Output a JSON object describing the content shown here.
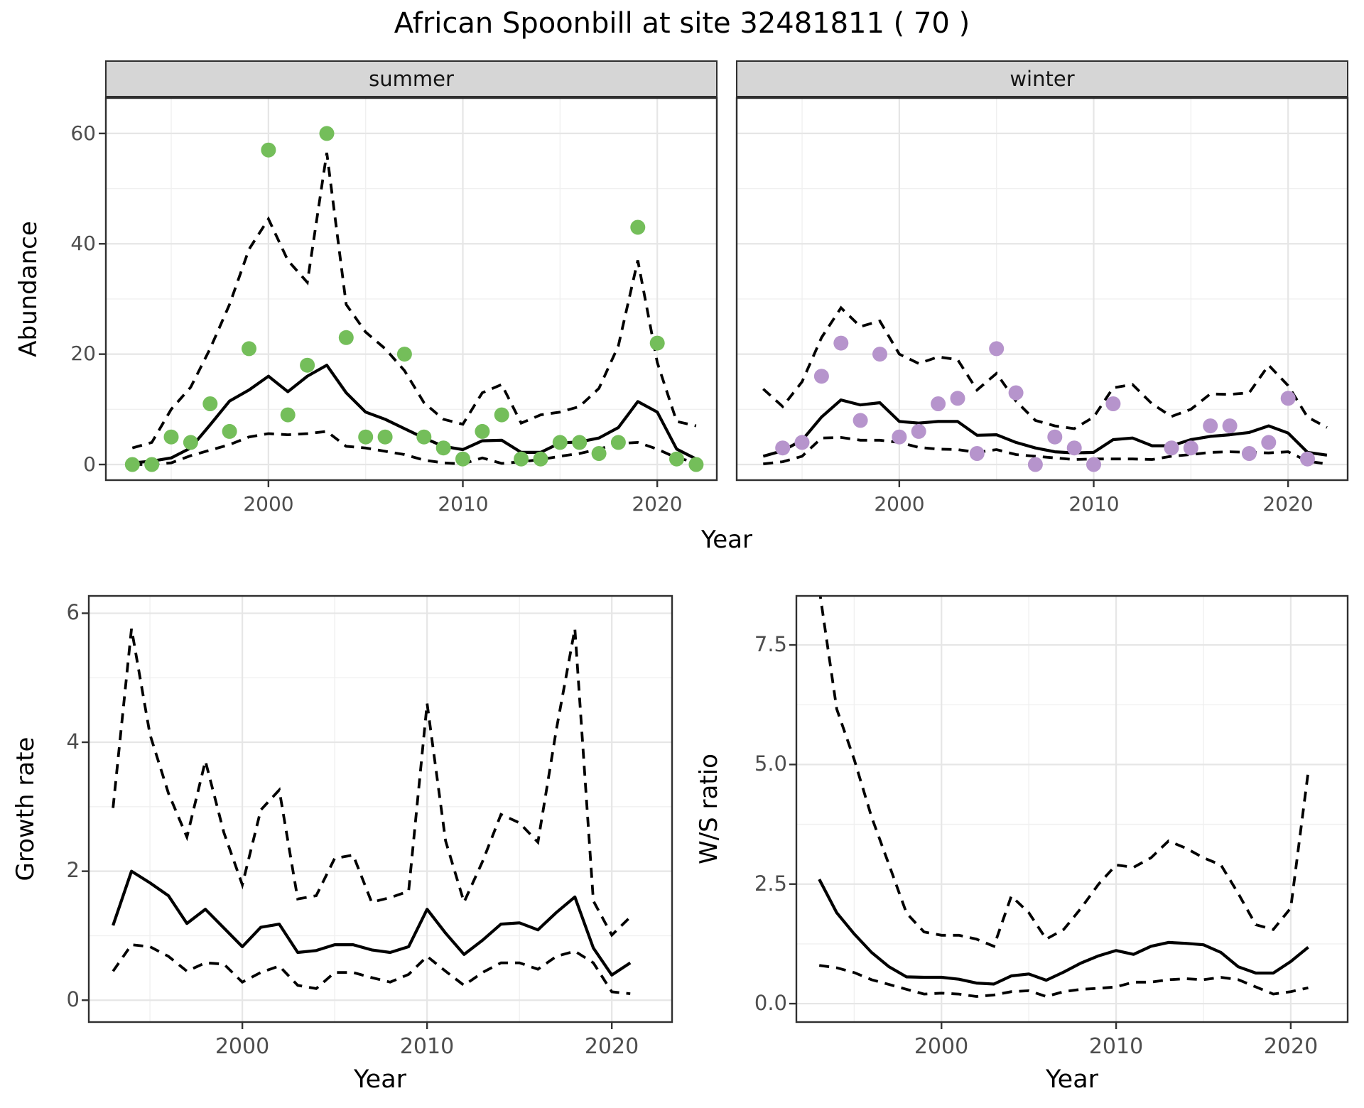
{
  "title": "African Spoonbill at site 32481811 ( 70 )",
  "axis": {
    "abundance": "Abundance",
    "year_top": "Year",
    "year_growth": "Year",
    "year_ws": "Year",
    "growth": "Growth rate",
    "ws": "W/S ratio"
  },
  "colors": {
    "summer_point": "#74BE5A",
    "winter_point": "#B694CC",
    "line": "#000000",
    "strip_bg": "#D6D6D6",
    "grid_major": "#E6E6E6",
    "grid_minor": "#F0F0F0",
    "axis_text": "#4D4D4D",
    "panel_border": "#2f2f2f"
  },
  "chart_data": [
    {
      "id": "abundance_summer",
      "type": "scatter",
      "facet_label": "summer",
      "xlabel": "Year",
      "ylabel": "Abundance",
      "xlim": [
        1991.6,
        2023.1
      ],
      "ylim": [
        -2.96,
        66.55
      ],
      "x_ticks": [
        2000,
        2010,
        2020
      ],
      "x_tick_labels": [
        "2000",
        "2010",
        "2020"
      ],
      "x_minor": [
        1995,
        2005,
        2015
      ],
      "y_ticks": [
        0,
        20,
        40,
        60
      ],
      "y_tick_labels": [
        "0",
        "20",
        "40",
        "60"
      ],
      "y_minor": [
        10,
        30,
        50
      ],
      "y_axis": true,
      "point_color": "#74BE5A",
      "points": {
        "years": [
          1993,
          1994,
          1995,
          1996,
          1997,
          1998,
          1999,
          2000,
          2001,
          2002,
          2003,
          2004,
          2005,
          2006,
          2007,
          2008,
          2009,
          2010,
          2011,
          2012,
          2013,
          2014,
          2015,
          2016,
          2017,
          2018,
          2019,
          2020,
          2021,
          2022
        ],
        "values": [
          0,
          0,
          5,
          4,
          11,
          6,
          21,
          57,
          9,
          18,
          60,
          23,
          5,
          5,
          20,
          5,
          3,
          1,
          6,
          9,
          1,
          1,
          4,
          4,
          2,
          4,
          43,
          22,
          1,
          0
        ]
      },
      "mean_line": {
        "years": [
          1993,
          1994,
          1995,
          1996,
          1997,
          1998,
          1999,
          2000,
          2001,
          2002,
          2003,
          2004,
          2005,
          2006,
          2007,
          2008,
          2009,
          2010,
          2011,
          2012,
          2013,
          2014,
          2015,
          2016,
          2017,
          2018,
          2019,
          2020,
          2021,
          2022
        ],
        "values": [
          0.3,
          0.6,
          1.2,
          3,
          7.2,
          11.5,
          13.5,
          16,
          13.2,
          16,
          18,
          13,
          9.5,
          8.2,
          6.5,
          4.8,
          3.3,
          2.7,
          4.3,
          4.4,
          2.2,
          2.2,
          3.9,
          4.1,
          4.8,
          6.7,
          11.4,
          9.5,
          2.8,
          1
        ]
      },
      "upper_ci": {
        "years": [
          1993,
          1994,
          1995,
          1996,
          1997,
          1998,
          1999,
          2000,
          2001,
          2002,
          2003,
          2004,
          2005,
          2006,
          2007,
          2008,
          2009,
          2010,
          2011,
          2012,
          2013,
          2014,
          2015,
          2016,
          2017,
          2018,
          2019,
          2020,
          2021,
          2022
        ],
        "values": [
          3,
          4,
          10,
          14,
          21,
          29,
          39,
          44.5,
          37,
          33,
          56.5,
          29,
          24,
          21,
          17,
          11.2,
          8.2,
          7.3,
          13,
          14.5,
          7.5,
          9,
          9.5,
          10.5,
          13.8,
          21.5,
          37,
          18.5,
          7.8,
          7
        ]
      },
      "lower_ci": {
        "years": [
          1993,
          1994,
          1995,
          1996,
          1997,
          1998,
          1999,
          2000,
          2001,
          2002,
          2003,
          2004,
          2005,
          2006,
          2007,
          2008,
          2009,
          2010,
          2011,
          2012,
          2013,
          2014,
          2015,
          2016,
          2017,
          2018,
          2019,
          2020,
          2021,
          2022
        ],
        "values": [
          0,
          0,
          0.3,
          1.6,
          2.6,
          3.6,
          5,
          5.6,
          5.4,
          5.6,
          6,
          3.3,
          3,
          2.4,
          1.8,
          0.8,
          0.3,
          0.1,
          1.2,
          0.2,
          0.5,
          0.9,
          1.5,
          2,
          2.8,
          3.8,
          4,
          2.8,
          1.2,
          0.4
        ]
      }
    },
    {
      "id": "abundance_winter",
      "type": "scatter",
      "facet_label": "winter",
      "xlabel": "Year",
      "ylabel": "Abundance",
      "xlim": [
        1991.6,
        2023.1
      ],
      "ylim": [
        -2.96,
        66.55
      ],
      "x_ticks": [
        2000,
        2010,
        2020
      ],
      "x_tick_labels": [
        "2000",
        "2010",
        "2020"
      ],
      "x_minor": [
        1995,
        2005,
        2015
      ],
      "y_ticks": [
        0,
        20,
        40,
        60
      ],
      "y_tick_labels": [
        "0",
        "20",
        "40",
        "60"
      ],
      "y_minor": [
        10,
        30,
        50
      ],
      "y_axis": false,
      "point_color": "#B694CC",
      "points": {
        "years": [
          1994,
          1995,
          1996,
          1997,
          1998,
          1999,
          2000,
          2001,
          2002,
          2003,
          2004,
          2005,
          2006,
          2007,
          2008,
          2009,
          2010,
          2011,
          2014,
          2015,
          2016,
          2017,
          2018,
          2019,
          2020,
          2021
        ],
        "values": [
          3,
          4,
          16,
          22,
          8,
          20,
          5,
          6,
          11,
          12,
          2,
          21,
          13,
          0,
          5,
          3,
          0,
          11,
          3,
          3,
          7,
          7,
          2,
          4,
          12,
          1
        ]
      },
      "mean_line": {
        "years": [
          1993,
          1994,
          1995,
          1996,
          1997,
          1998,
          1999,
          2000,
          2001,
          2002,
          2003,
          2004,
          2005,
          2006,
          2007,
          2008,
          2009,
          2010,
          2011,
          2012,
          2013,
          2014,
          2015,
          2016,
          2017,
          2018,
          2019,
          2020,
          2021,
          2022
        ],
        "values": [
          1.5,
          2.5,
          4.4,
          8.6,
          11.7,
          10.8,
          11.2,
          7.8,
          7.5,
          7.8,
          7.8,
          5.3,
          5.4,
          4,
          3,
          2.3,
          2.1,
          2.2,
          4.5,
          4.8,
          3.4,
          3.4,
          4.5,
          5.1,
          5.4,
          5.8,
          7,
          5.7,
          2.2,
          1.7
        ]
      },
      "upper_ci": {
        "years": [
          1993,
          1994,
          1995,
          1996,
          1997,
          1998,
          1999,
          2000,
          2001,
          2002,
          2003,
          2004,
          2005,
          2006,
          2007,
          2008,
          2009,
          2010,
          2011,
          2012,
          2013,
          2014,
          2015,
          2016,
          2017,
          2018,
          2019,
          2020,
          2021,
          2022
        ],
        "values": [
          13.7,
          10.5,
          15,
          23,
          28.4,
          25,
          26,
          20,
          18.3,
          19.5,
          19,
          13.5,
          16.5,
          11.5,
          8,
          7,
          6.5,
          8.6,
          13.9,
          14.5,
          11,
          8.7,
          10,
          12.8,
          12.7,
          13,
          18,
          14.3,
          8.6,
          6.7
        ]
      },
      "lower_ci": {
        "years": [
          1993,
          1994,
          1995,
          1996,
          1997,
          1998,
          1999,
          2000,
          2001,
          2002,
          2003,
          2004,
          2005,
          2006,
          2007,
          2008,
          2009,
          2010,
          2011,
          2012,
          2013,
          2014,
          2015,
          2016,
          2017,
          2018,
          2019,
          2020,
          2021,
          2022
        ],
        "values": [
          0.1,
          0.5,
          1.5,
          4.8,
          4.9,
          4.4,
          4.4,
          4,
          3.1,
          2.8,
          2.7,
          2.2,
          2.7,
          1.8,
          1.5,
          1.2,
          0.9,
          1,
          1,
          1,
          0.9,
          1.5,
          1.8,
          2.2,
          2.3,
          2.2,
          2.1,
          2.3,
          0.6,
          0.1
        ]
      }
    },
    {
      "id": "growth_rate",
      "type": "line",
      "facet_label": "",
      "xlabel": "Year",
      "ylabel": "Growth rate",
      "xlim": [
        1991.65,
        2023.3
      ],
      "ylim": [
        -0.35,
        6.28
      ],
      "x_ticks": [
        2000,
        2010,
        2020
      ],
      "x_tick_labels": [
        "2000",
        "2010",
        "2020"
      ],
      "x_minor": [
        1995,
        2005,
        2015
      ],
      "y_ticks": [
        0,
        2,
        4,
        6
      ],
      "y_tick_labels": [
        "0",
        "2",
        "4",
        "6"
      ],
      "y_minor": [
        1,
        3,
        5
      ],
      "y_axis": true,
      "mean_line": {
        "years": [
          1993,
          1994,
          1995,
          1996,
          1997,
          1998,
          1999,
          2000,
          2001,
          2002,
          2003,
          2004,
          2005,
          2006,
          2007,
          2008,
          2009,
          2010,
          2011,
          2012,
          2013,
          2014,
          2015,
          2016,
          2017,
          2018,
          2019,
          2020,
          2021
        ],
        "values": [
          1.16,
          2,
          1.82,
          1.62,
          1.19,
          1.41,
          1.12,
          0.83,
          1.13,
          1.18,
          0.74,
          0.77,
          0.86,
          0.86,
          0.78,
          0.74,
          0.83,
          1.41,
          1.04,
          0.71,
          0.93,
          1.18,
          1.2,
          1.09,
          1.36,
          1.6,
          0.81,
          0.39,
          0.58
        ]
      },
      "upper_ci": {
        "years": [
          1993,
          1994,
          1995,
          1996,
          1997,
          1998,
          1999,
          2000,
          2001,
          2002,
          2003,
          2004,
          2005,
          2006,
          2007,
          2008,
          2009,
          2010,
          2011,
          2012,
          2013,
          2014,
          2015,
          2016,
          2017,
          2018,
          2019,
          2020,
          2021
        ],
        "values": [
          2.98,
          5.76,
          4.12,
          3.21,
          2.53,
          3.71,
          2.6,
          1.79,
          2.95,
          3.26,
          1.57,
          1.62,
          2.2,
          2.25,
          1.52,
          1.59,
          1.69,
          4.6,
          2.47,
          1.52,
          2.15,
          2.88,
          2.75,
          2.45,
          4.2,
          5.76,
          1.54,
          1.01,
          1.29
        ]
      },
      "lower_ci": {
        "years": [
          1993,
          1994,
          1995,
          1996,
          1997,
          1998,
          1999,
          2000,
          2001,
          2002,
          2003,
          2004,
          2005,
          2006,
          2007,
          2008,
          2009,
          2010,
          2011,
          2012,
          2013,
          2014,
          2015,
          2016,
          2017,
          2018,
          2019,
          2020,
          2021
        ],
        "values": [
          0.45,
          0.86,
          0.83,
          0.68,
          0.45,
          0.58,
          0.56,
          0.28,
          0.43,
          0.53,
          0.23,
          0.18,
          0.43,
          0.43,
          0.35,
          0.28,
          0.4,
          0.68,
          0.45,
          0.23,
          0.43,
          0.58,
          0.58,
          0.48,
          0.68,
          0.76,
          0.58,
          0.13,
          0.1
        ]
      }
    },
    {
      "id": "ws_ratio",
      "type": "line",
      "facet_label": "",
      "xlabel": "Year",
      "ylabel": "W/S ratio",
      "xlim": [
        1991.65,
        2023.3
      ],
      "ylim": [
        -0.4,
        8.54
      ],
      "x_ticks": [
        2000,
        2010,
        2020
      ],
      "x_tick_labels": [
        "2000",
        "2010",
        "2020"
      ],
      "x_minor": [
        1995,
        2005,
        2015
      ],
      "y_ticks": [
        0,
        2.5,
        5,
        7.5
      ],
      "y_tick_labels": [
        "0.0",
        "2.5",
        "5.0",
        "7.5"
      ],
      "y_minor": [
        1.25,
        3.75,
        6.25
      ],
      "y_axis": true,
      "mean_line": {
        "years": [
          1993,
          1994,
          1995,
          1996,
          1997,
          1998,
          1999,
          2000,
          2001,
          2002,
          2003,
          2004,
          2005,
          2006,
          2007,
          2008,
          2009,
          2010,
          2011,
          2012,
          2013,
          2014,
          2015,
          2016,
          2017,
          2018,
          2019,
          2020,
          2021
        ],
        "values": [
          2.6,
          1.9,
          1.46,
          1.07,
          0.77,
          0.56,
          0.55,
          0.55,
          0.51,
          0.43,
          0.41,
          0.58,
          0.62,
          0.49,
          0.66,
          0.85,
          1,
          1.11,
          1.03,
          1.2,
          1.28,
          1.26,
          1.23,
          1.07,
          0.77,
          0.64,
          0.64,
          0.88,
          1.18
        ]
      },
      "upper_ci": {
        "years": [
          1993,
          1994,
          1995,
          1996,
          1997,
          1998,
          1999,
          2000,
          2001,
          2002,
          2003,
          2004,
          2005,
          2006,
          2007,
          2008,
          2009,
          2010,
          2011,
          2012,
          2013,
          2014,
          2015,
          2016,
          2017,
          2018,
          2019,
          2020,
          2021
        ],
        "values": [
          8.67,
          6.16,
          5.11,
          3.9,
          2.9,
          1.89,
          1.5,
          1.43,
          1.43,
          1.35,
          1.2,
          2.25,
          1.9,
          1.35,
          1.55,
          2,
          2.5,
          2.9,
          2.85,
          3.05,
          3.4,
          3.25,
          3.05,
          2.9,
          2.3,
          1.65,
          1.55,
          2,
          4.85
        ]
      },
      "lower_ci": {
        "years": [
          1993,
          1994,
          1995,
          1996,
          1997,
          1998,
          1999,
          2000,
          2001,
          2002,
          2003,
          2004,
          2005,
          2006,
          2007,
          2008,
          2009,
          2010,
          2011,
          2012,
          2013,
          2014,
          2015,
          2016,
          2017,
          2018,
          2019,
          2020,
          2021
        ],
        "values": [
          0.8,
          0.75,
          0.65,
          0.5,
          0.4,
          0.3,
          0.2,
          0.22,
          0.2,
          0.15,
          0.18,
          0.25,
          0.27,
          0.15,
          0.25,
          0.3,
          0.32,
          0.35,
          0.45,
          0.45,
          0.5,
          0.52,
          0.5,
          0.55,
          0.5,
          0.35,
          0.2,
          0.25,
          0.33
        ]
      }
    }
  ]
}
